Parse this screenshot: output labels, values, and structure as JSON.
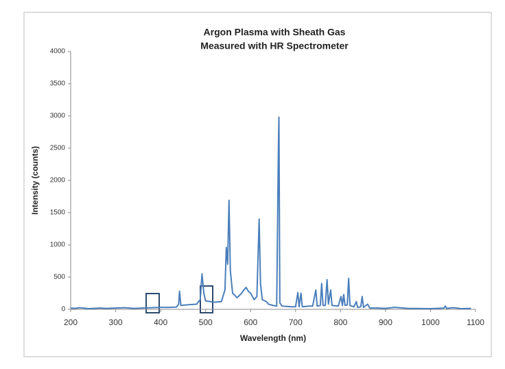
{
  "chart_data": {
    "type": "line",
    "title": [
      "Argon Plasma with Sheath Gas",
      "Measured with HR Spectrometer"
    ],
    "x_label": "Wavelength (nm)",
    "y_label": "Intensity (counts)",
    "x": [
      200,
      210,
      220,
      240,
      265,
      280,
      300,
      320,
      340,
      360,
      380,
      400,
      420,
      435,
      440,
      442,
      445,
      460,
      480,
      488,
      492,
      496,
      500,
      520,
      535,
      543,
      546,
      549,
      552,
      555,
      560,
      570,
      580,
      585,
      590,
      595,
      600,
      608,
      614,
      619,
      622,
      626,
      635,
      640,
      650,
      658,
      662,
      663,
      665,
      670,
      690,
      700,
      705,
      708,
      712,
      715,
      730,
      738,
      745,
      748,
      755,
      758,
      761,
      766,
      770,
      773,
      778,
      781,
      795,
      801,
      804,
      807,
      810,
      815,
      818,
      821,
      830,
      835,
      838,
      845,
      848,
      851,
      860,
      865,
      880,
      900,
      920,
      950,
      1000,
      1030,
      1033,
      1036,
      1050,
      1070,
      1090
    ],
    "series": [
      {
        "color": "#4a7ebb",
        "values": [
          20,
          15,
          25,
          10,
          20,
          15,
          20,
          25,
          15,
          20,
          25,
          30,
          30,
          35,
          80,
          280,
          60,
          70,
          80,
          150,
          550,
          250,
          130,
          110,
          120,
          300,
          960,
          700,
          1690,
          600,
          250,
          180,
          250,
          300,
          340,
          280,
          250,
          150,
          200,
          1400,
          400,
          150,
          120,
          80,
          60,
          50,
          2600,
          2980,
          100,
          50,
          40,
          40,
          260,
          40,
          250,
          40,
          50,
          50,
          300,
          50,
          60,
          400,
          60,
          60,
          460,
          80,
          300,
          60,
          50,
          200,
          60,
          230,
          60,
          70,
          480,
          60,
          40,
          120,
          30,
          40,
          200,
          30,
          80,
          20,
          20,
          15,
          30,
          15,
          10,
          20,
          50,
          15,
          25,
          10,
          15
        ]
      }
    ],
    "xlim": [
      200,
      1100
    ],
    "xticks": [
      200,
      300,
      400,
      500,
      600,
      700,
      800,
      900,
      1000,
      1100
    ],
    "ylim": [
      0,
      4000
    ],
    "yticks": [
      0,
      500,
      1000,
      1500,
      2000,
      2500,
      3000,
      3500,
      4000
    ],
    "grid": false
  }
}
